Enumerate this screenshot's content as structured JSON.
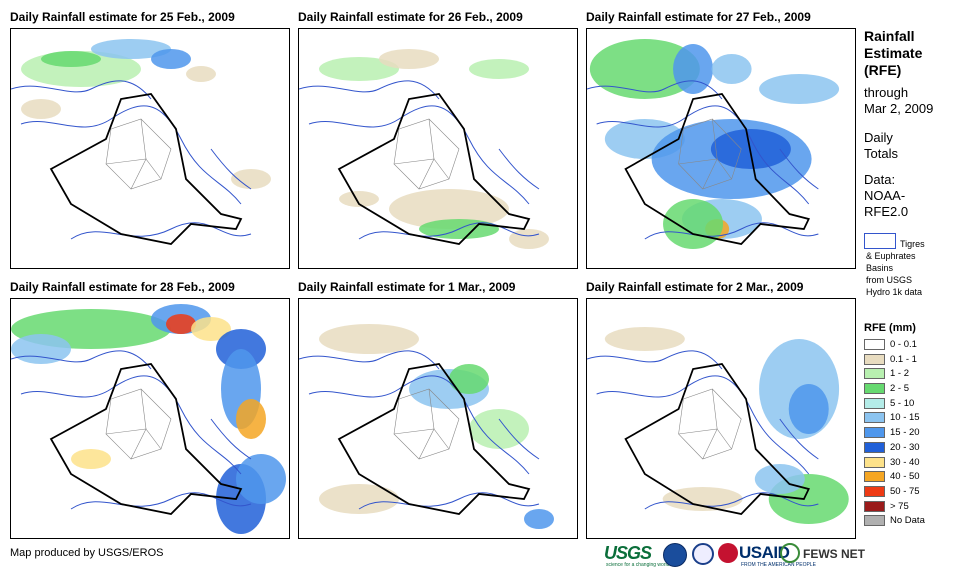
{
  "panels": [
    {
      "title": "Daily Rainfall estimate for 25 Feb., 2009",
      "day": "25-Feb"
    },
    {
      "title": "Daily Rainfall estimate for 26 Feb., 2009",
      "day": "26-Feb"
    },
    {
      "title": "Daily Rainfall estimate for 27 Feb., 2009",
      "day": "27-Feb"
    },
    {
      "title": "Daily Rainfall estimate for 28 Feb., 2009",
      "day": "28-Feb"
    },
    {
      "title": "Daily Rainfall estimate for 1 Mar., 2009",
      "day": "1-Mar"
    },
    {
      "title": "Daily Rainfall estimate for 2 Mar., 2009",
      "day": "2-Mar"
    }
  ],
  "sidebar": {
    "title_lines": [
      "Rainfall",
      "Estimate",
      "(RFE)"
    ],
    "sub_lines": [
      "through",
      "Mar 2, 2009"
    ],
    "daily_lines": [
      "Daily",
      "Totals"
    ],
    "data_lines": [
      "Data:",
      "NOAA-",
      "RFE2.0"
    ],
    "basin_lines": [
      "Tigres",
      "& Euphrates",
      "Basins",
      "from USGS",
      "Hydro 1k data"
    ]
  },
  "legend": {
    "title": "RFE (mm)",
    "items": [
      {
        "label": "0 - 0.1",
        "color": "#ffffff"
      },
      {
        "label": "0.1 - 1",
        "color": "#e8dcc0"
      },
      {
        "label": "1 - 2",
        "color": "#b8f0b0"
      },
      {
        "label": "2 - 5",
        "color": "#66d970"
      },
      {
        "label": "5 - 10",
        "color": "#b4ece8"
      },
      {
        "label": "10 - 15",
        "color": "#8cc4f0"
      },
      {
        "label": "15 - 20",
        "color": "#4f97ec"
      },
      {
        "label": "20 - 30",
        "color": "#2160d8"
      },
      {
        "label": "30 - 40",
        "color": "#fde28a"
      },
      {
        "label": "40 - 50",
        "color": "#f5a623"
      },
      {
        "label": "50 - 75",
        "color": "#ee3a14"
      },
      {
        "label": "> 75",
        "color": "#9a1b1b"
      },
      {
        "label": "No Data",
        "color": "#b0b0b0"
      }
    ]
  },
  "footer": {
    "credit": "Map produced by USGS/EROS",
    "usgs": "USGS",
    "usgs_tagline": "science for a changing world",
    "usaid": "USAID",
    "usaid_tagline": "FROM THE AMERICAN PEOPLE",
    "fews": "FEWS NET"
  },
  "colors": {
    "border": "#000000",
    "rivers": "#3355cc",
    "provinces": "#888888"
  }
}
